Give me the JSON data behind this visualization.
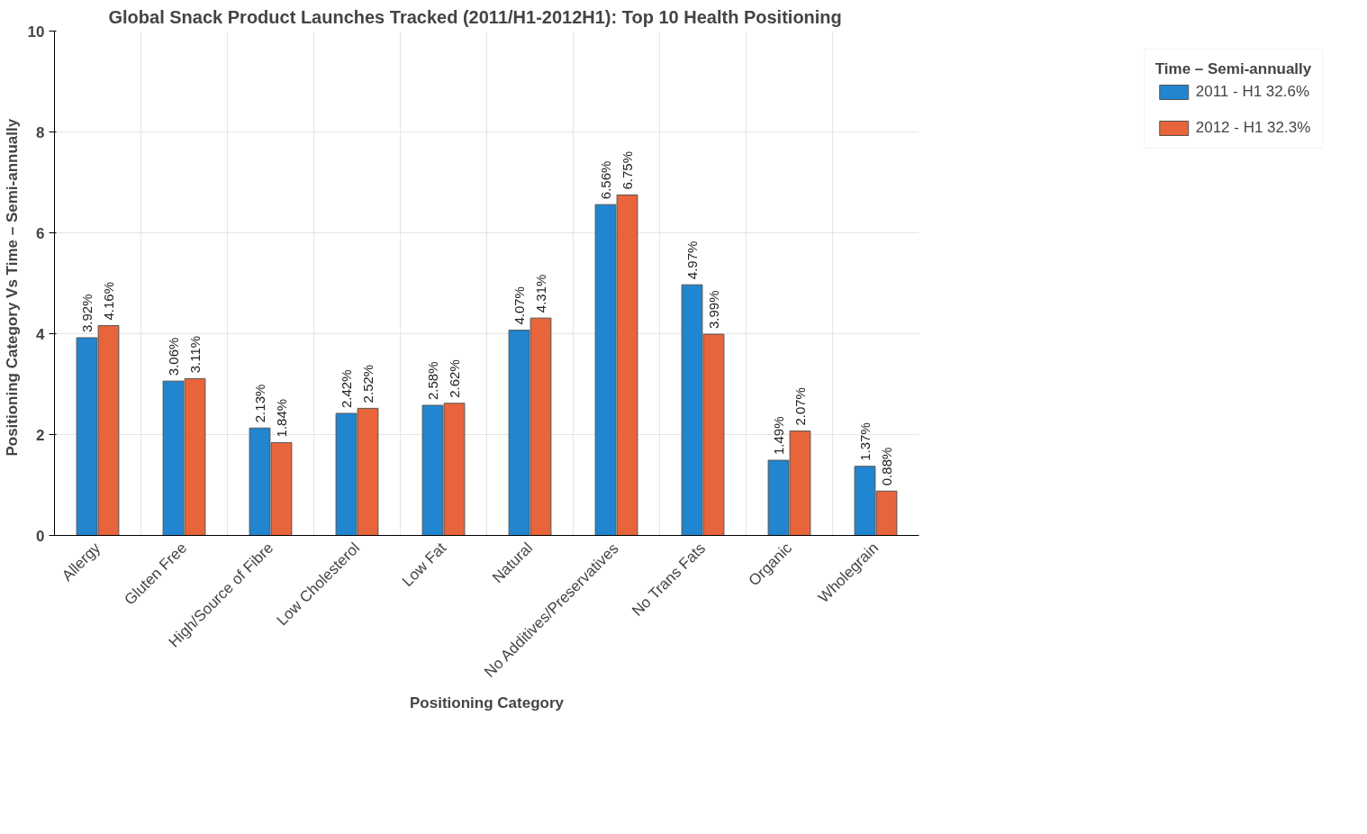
{
  "chart_data": {
    "type": "bar",
    "title": "Global Snack Product Launches Tracked (2011/H1-2012H1): Top 10 Health Positioning",
    "xlabel": "Positioning Category",
    "ylabel": "Positioning Category  Vs  Time – Semi-annually",
    "legend_title": "Time – Semi-annually",
    "categories": [
      "Allergy",
      "Gluten Free",
      "High/Source of Fibre",
      "Low Cholesterol",
      "Low Fat",
      "Natural",
      "No Additives/Preservatives",
      "No Trans Fats",
      "Organic",
      "Wholegrain"
    ],
    "series": [
      {
        "name": "2011 - H1 32.6%",
        "color": "#2185d0",
        "values": [
          3.92,
          3.06,
          2.13,
          2.42,
          2.58,
          4.07,
          6.56,
          4.97,
          1.49,
          1.37
        ],
        "value_labels": [
          "3.92%",
          "3.06%",
          "2.13%",
          "2.42%",
          "2.58%",
          "4.07%",
          "6.56%",
          "4.97%",
          "1.49%",
          "1.37%"
        ]
      },
      {
        "name": "2012 - H1 32.3%",
        "color": "#e8643a",
        "values": [
          4.16,
          3.11,
          1.84,
          2.52,
          2.62,
          4.31,
          6.75,
          3.99,
          2.07,
          0.88
        ],
        "value_labels": [
          "4.16%",
          "3.11%",
          "1.84%",
          "2.52%",
          "2.62%",
          "4.31%",
          "6.75%",
          "3.99%",
          "2.07%",
          "0.88%"
        ]
      }
    ],
    "ylim": [
      0,
      10
    ],
    "yticks": [
      0,
      2,
      4,
      6,
      8,
      10
    ],
    "grid": true,
    "legend": "top right"
  }
}
